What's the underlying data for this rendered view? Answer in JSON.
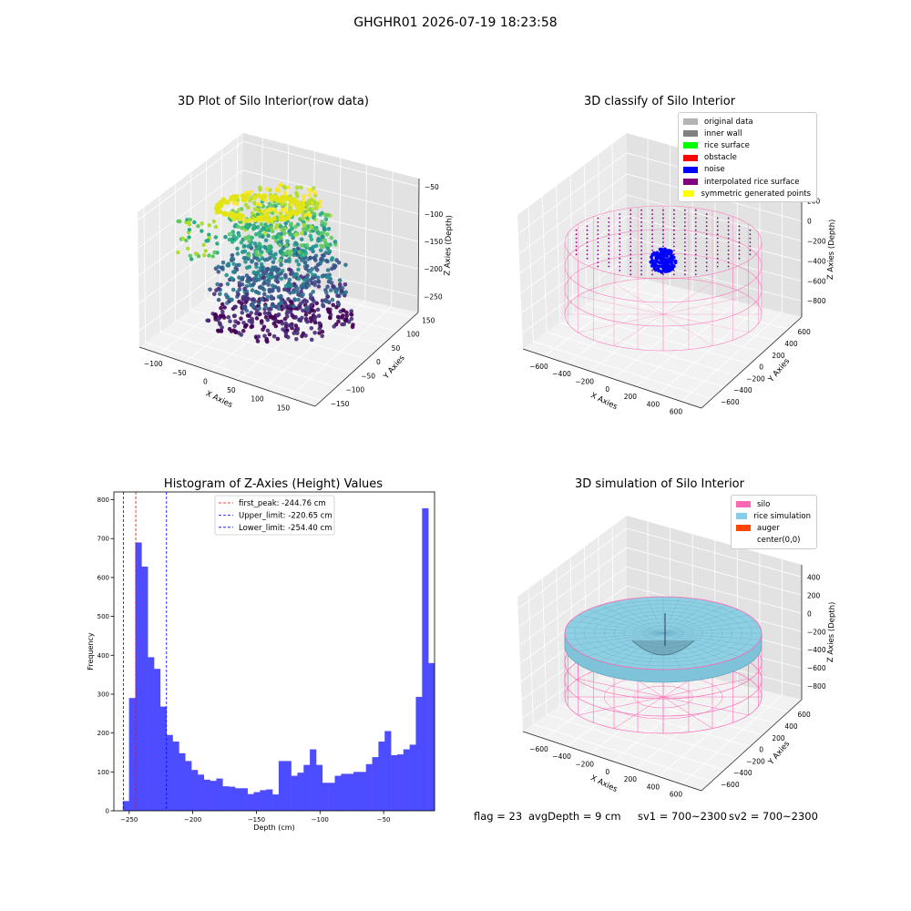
{
  "figure": {
    "suptitle": "GHGHR01 2026-07-19 18:23:58",
    "footer": {
      "flag": "flag = 23",
      "avg_depth": "avgDepth = 9 cm",
      "sv1": "sv1 = 700~2300",
      "sv2": "sv2 = 700~2300"
    }
  },
  "chart_data": [
    {
      "type": "scatter",
      "projection": "3d",
      "title": "3D Plot of Silo Interior(row data)",
      "xlabel": "X Axies",
      "ylabel": "Y Axies",
      "zlabel": "Z Axies (Depth)",
      "x_ticks": [
        "−100",
        "−50",
        "0",
        "50",
        "100",
        "150"
      ],
      "y_ticks": [
        "−150",
        "−100",
        "−50",
        "0",
        "50",
        "100",
        "150"
      ],
      "z_ticks": [
        "−250",
        "−200",
        "−150",
        "−100",
        "−50"
      ],
      "xlim": [
        -130,
        155
      ],
      "ylim": [
        -155,
        160
      ],
      "zlim": [
        -270,
        -20
      ],
      "colormap": "viridis",
      "grid": true
    },
    {
      "type": "scatter",
      "projection": "3d",
      "title": "3D classify of Silo Interior",
      "xlabel": "X Axies",
      "ylabel": "Y Axies",
      "zlabel": "Z Axies (Depth)",
      "x_ticks": [
        "−600",
        "−400",
        "−200",
        "0",
        "200",
        "400",
        "600"
      ],
      "y_ticks": [
        "−600",
        "−400",
        "−200",
        "0",
        "200",
        "400",
        "600"
      ],
      "z_ticks": [
        "−800",
        "−600",
        "−400",
        "−200",
        "0",
        "200"
      ],
      "legend_position": "upper right",
      "legend": [
        {
          "label": "original data",
          "color": "#b3b3b3"
        },
        {
          "label": "inner wall",
          "color": "#808080"
        },
        {
          "label": "rice surface",
          "color": "#00ff00"
        },
        {
          "label": "obstacle",
          "color": "#ff0000"
        },
        {
          "label": "noise",
          "color": "#0000ff"
        },
        {
          "label": "interpolated rice surface",
          "color": "#800080"
        },
        {
          "label": "symmetric generated points",
          "color": "#ffff00"
        }
      ],
      "grid": true
    },
    {
      "type": "bar",
      "title": "Histogram of Z-Axies (Height) Values",
      "xlabel": "Depth (cm)",
      "ylabel": "Frequency",
      "xlim": [
        -262,
        -10
      ],
      "ylim": [
        0,
        820
      ],
      "x_ticks": [
        -250,
        -200,
        -150,
        -100,
        -50
      ],
      "y_ticks": [
        0,
        100,
        200,
        300,
        400,
        500,
        600,
        700,
        800
      ],
      "bin_start": -255,
      "bin_width": 4.9,
      "values": [
        25,
        290,
        690,
        628,
        395,
        365,
        268,
        195,
        178,
        148,
        128,
        105,
        93,
        80,
        77,
        83,
        63,
        62,
        58,
        58,
        43,
        48,
        53,
        55,
        42,
        128,
        128,
        90,
        98,
        118,
        158,
        118,
        72,
        72,
        90,
        95,
        95,
        100,
        100,
        120,
        138,
        178,
        205,
        143,
        145,
        158,
        170,
        293,
        778,
        380
      ],
      "bar_color": "#4d4dff",
      "legend_position": "upper center",
      "vlines": [
        {
          "label": "first_peak: -244.76 cm",
          "x": -244.76,
          "color": "#ff0000"
        },
        {
          "label": "Upper_limit: -220.65 cm",
          "x": -220.65,
          "color": "#0000ff"
        },
        {
          "label": "Lower_limit: -254.40 cm",
          "x": -254.4,
          "color": "#0000ff"
        }
      ],
      "grid": false
    },
    {
      "type": "surface",
      "projection": "3d",
      "title": "3D simulation of Silo Interior",
      "xlabel": "X Axies",
      "ylabel": "Y Axies",
      "zlabel": "Z Axies (Depth)",
      "x_ticks": [
        "−600",
        "−400",
        "−200",
        "0",
        "200",
        "400",
        "600"
      ],
      "y_ticks": [
        "−600",
        "−400",
        "−200",
        "0",
        "200",
        "400",
        "600"
      ],
      "z_ticks": [
        "−800",
        "−600",
        "−400",
        "−200",
        "0",
        "200",
        "400"
      ],
      "legend_position": "upper right",
      "legend": [
        {
          "label": "silo",
          "color": "#ff69b4"
        },
        {
          "label": "rice simulation",
          "color": "#87ceeb"
        },
        {
          "label": "auger",
          "color": "#ff4500"
        },
        {
          "label": "center(0,0)",
          "color": "#ffffff"
        }
      ],
      "grid": true
    }
  ]
}
